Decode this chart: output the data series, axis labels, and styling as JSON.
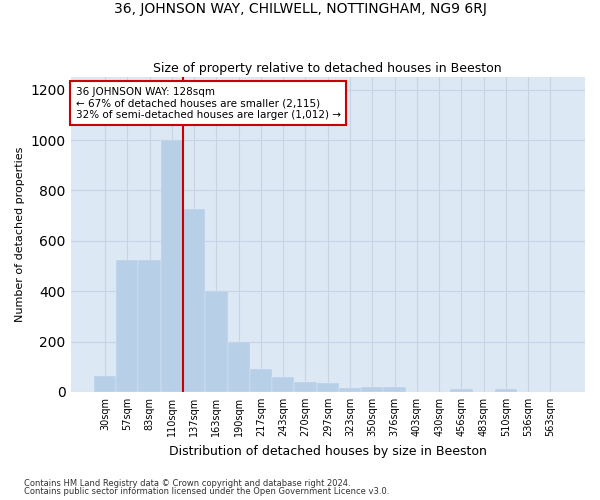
{
  "title1": "36, JOHNSON WAY, CHILWELL, NOTTINGHAM, NG9 6RJ",
  "title2": "Size of property relative to detached houses in Beeston",
  "xlabel": "Distribution of detached houses by size in Beeston",
  "ylabel": "Number of detached properties",
  "bar_labels": [
    "30sqm",
    "57sqm",
    "83sqm",
    "110sqm",
    "137sqm",
    "163sqm",
    "190sqm",
    "217sqm",
    "243sqm",
    "270sqm",
    "297sqm",
    "323sqm",
    "350sqm",
    "376sqm",
    "403sqm",
    "430sqm",
    "456sqm",
    "483sqm",
    "510sqm",
    "536sqm",
    "563sqm"
  ],
  "bar_values": [
    65,
    525,
    525,
    1000,
    725,
    400,
    200,
    90,
    60,
    40,
    35,
    15,
    20,
    20,
    0,
    0,
    10,
    0,
    10,
    0,
    0
  ],
  "bar_color": "#b8cfe8",
  "grid_color": "#c8d4e4",
  "bg_color": "#dce8f4",
  "vline_color": "#cc0000",
  "vline_x": 4.0,
  "annotation_line1": "36 JOHNSON WAY: 128sqm",
  "annotation_line2": "← 67% of detached houses are smaller (2,115)",
  "annotation_line3": "32% of semi-detached houses are larger (1,012) →",
  "annotation_box_color": "#cc0000",
  "ylim": [
    0,
    1250
  ],
  "yticks": [
    0,
    200,
    400,
    600,
    800,
    1000,
    1200
  ],
  "footer1": "Contains HM Land Registry data © Crown copyright and database right 2024.",
  "footer2": "Contains public sector information licensed under the Open Government Licence v3.0."
}
